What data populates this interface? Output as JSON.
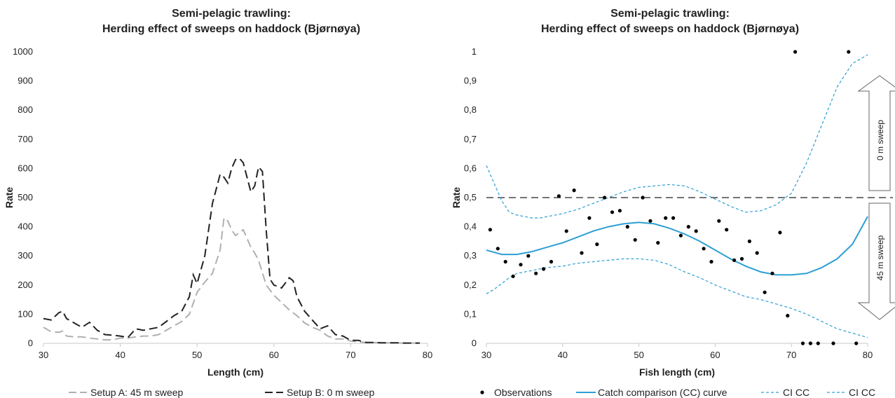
{
  "chart_data": [
    {
      "type": "line",
      "title_line1": "Semi-pelagic trawling:",
      "title_line2": "Herding effect of sweeps on haddock (Bjørnøya)",
      "xlabel": "Length (cm)",
      "ylabel": "Rate",
      "xlim": [
        30,
        80
      ],
      "ylim": [
        0,
        1000
      ],
      "x_ticks": [
        "30",
        "40",
        "50",
        "60",
        "70",
        "80"
      ],
      "y_ticks": [
        "0",
        "100",
        "200",
        "300",
        "400",
        "500",
        "600",
        "700",
        "800",
        "900",
        "1000"
      ],
      "grid": false,
      "legend_position": "bottom",
      "series": [
        {
          "name": "Setup A: 45 m sweep",
          "color": "#b0b0b0",
          "x": [
            30,
            31,
            32,
            32.5,
            33,
            34,
            35,
            36,
            37,
            38,
            39,
            40,
            41,
            42,
            43,
            44,
            45,
            46,
            47,
            48,
            49,
            50,
            51,
            52,
            53,
            53.5,
            54,
            54.5,
            55,
            56,
            57,
            57.5,
            58,
            59,
            60,
            61,
            62,
            63,
            64,
            65,
            66,
            67,
            68,
            69,
            70,
            71,
            72,
            73,
            74,
            75,
            76,
            77,
            78,
            79
          ],
          "values": [
            55,
            40,
            38,
            42,
            25,
            22,
            22,
            18,
            15,
            12,
            12,
            18,
            18,
            22,
            25,
            25,
            30,
            45,
            60,
            75,
            100,
            175,
            210,
            240,
            320,
            430,
            420,
            390,
            370,
            390,
            330,
            310,
            285,
            200,
            165,
            140,
            115,
            95,
            70,
            55,
            45,
            25,
            15,
            15,
            8,
            5,
            3,
            3,
            2,
            2,
            1,
            1,
            1,
            1
          ]
        },
        {
          "name": "Setup B: 0 m sweep",
          "color": "#222222",
          "x": [
            30,
            31,
            32,
            32.5,
            33,
            34,
            35,
            36,
            37,
            38,
            39,
            40,
            41,
            42,
            43,
            44,
            45,
            46,
            47,
            48,
            49,
            49.5,
            50,
            51,
            52,
            53,
            53.5,
            54,
            54.5,
            55,
            55.5,
            56,
            57,
            57.5,
            58,
            58.5,
            59,
            59.5,
            60,
            61,
            62,
            62.5,
            63,
            64,
            65,
            66,
            67,
            68,
            69,
            70,
            71,
            72,
            73,
            74,
            75,
            76,
            77,
            78,
            79
          ],
          "values": [
            85,
            80,
            105,
            110,
            85,
            70,
            55,
            72,
            45,
            30,
            28,
            25,
            20,
            50,
            45,
            50,
            55,
            75,
            95,
            110,
            160,
            235,
            205,
            300,
            480,
            580,
            570,
            550,
            600,
            630,
            635,
            620,
            520,
            540,
            605,
            590,
            390,
            220,
            200,
            190,
            225,
            215,
            160,
            110,
            80,
            50,
            60,
            30,
            25,
            10,
            10,
            3,
            3,
            2,
            2,
            2,
            1,
            1,
            1
          ]
        }
      ]
    },
    {
      "type": "scatter",
      "title_line1": "Semi-pelagic trawling:",
      "title_line2": "Herding effect of sweeps on haddock (Bjørnøya)",
      "xlabel": "Fish length (cm)",
      "ylabel": "Rate",
      "xlim": [
        30,
        80
      ],
      "ylim": [
        0,
        1
      ],
      "x_ticks": [
        "30",
        "40",
        "50",
        "60",
        "70",
        "80"
      ],
      "y_ticks": [
        "0",
        "0,1",
        "0,2",
        "0,3",
        "0,4",
        "0,5",
        "0,6",
        "0,7",
        "0,8",
        "0,9",
        "1"
      ],
      "grid": false,
      "legend_position": "bottom",
      "reference_line": 0.5,
      "arrow_up_label": "0 m sweep",
      "arrow_down_label": "45 m sweep",
      "observations_name": "Observations",
      "observations": [
        [
          30.5,
          0.39
        ],
        [
          31.5,
          0.325
        ],
        [
          32.5,
          0.28
        ],
        [
          33.5,
          0.23
        ],
        [
          34.5,
          0.27
        ],
        [
          35.5,
          0.3
        ],
        [
          36.5,
          0.24
        ],
        [
          37.5,
          0.255
        ],
        [
          38.5,
          0.28
        ],
        [
          39.5,
          0.505
        ],
        [
          40.5,
          0.385
        ],
        [
          41.5,
          0.525
        ],
        [
          42.5,
          0.31
        ],
        [
          43.5,
          0.43
        ],
        [
          44.5,
          0.34
        ],
        [
          45.5,
          0.5
        ],
        [
          46.5,
          0.45
        ],
        [
          47.5,
          0.455
        ],
        [
          48.5,
          0.4
        ],
        [
          49.5,
          0.355
        ],
        [
          50.5,
          0.5
        ],
        [
          51.5,
          0.42
        ],
        [
          52.5,
          0.345
        ],
        [
          53.5,
          0.43
        ],
        [
          54.5,
          0.43
        ],
        [
          55.5,
          0.37
        ],
        [
          56.5,
          0.4
        ],
        [
          57.5,
          0.385
        ],
        [
          58.5,
          0.325
        ],
        [
          59.5,
          0.28
        ],
        [
          60.5,
          0.42
        ],
        [
          61.5,
          0.39
        ],
        [
          62.5,
          0.285
        ],
        [
          63.5,
          0.29
        ],
        [
          64.5,
          0.35
        ],
        [
          65.5,
          0.31
        ],
        [
          66.5,
          0.175
        ],
        [
          67.5,
          0.24
        ],
        [
          68.5,
          0.38
        ],
        [
          69.5,
          0.095
        ],
        [
          70.5,
          1.0
        ],
        [
          71.5,
          0.0
        ],
        [
          72.5,
          0.0
        ],
        [
          73.5,
          0.0
        ],
        [
          75.5,
          0.0
        ],
        [
          77.5,
          1.0
        ],
        [
          78.5,
          0.0
        ]
      ],
      "series": [
        {
          "name": "Catch comparison (CC) curve",
          "color": "#2e9fd4",
          "x": [
            30,
            32,
            34,
            36,
            38,
            40,
            42,
            44,
            46,
            48,
            50,
            52,
            54,
            56,
            58,
            60,
            62,
            64,
            66,
            68,
            70,
            72,
            74,
            76,
            78,
            80
          ],
          "values": [
            0.32,
            0.305,
            0.305,
            0.315,
            0.33,
            0.345,
            0.365,
            0.385,
            0.4,
            0.41,
            0.415,
            0.41,
            0.395,
            0.375,
            0.35,
            0.32,
            0.29,
            0.265,
            0.245,
            0.235,
            0.235,
            0.24,
            0.26,
            0.29,
            0.34,
            0.435
          ]
        },
        {
          "name": "CI CC",
          "color": "#2e9fd4",
          "x": [
            30,
            31,
            32,
            33,
            34,
            35,
            36,
            37,
            38,
            40,
            42,
            44,
            46,
            48,
            50,
            52,
            54,
            56,
            58,
            60,
            62,
            64,
            66,
            68,
            70,
            72,
            74,
            76,
            78,
            80
          ],
          "values": [
            0.61,
            0.55,
            0.49,
            0.45,
            0.44,
            0.435,
            0.43,
            0.43,
            0.435,
            0.445,
            0.46,
            0.48,
            0.5,
            0.52,
            0.535,
            0.54,
            0.545,
            0.54,
            0.52,
            0.495,
            0.47,
            0.45,
            0.455,
            0.475,
            0.515,
            0.62,
            0.75,
            0.88,
            0.96,
            0.99
          ]
        },
        {
          "name": "CI CC",
          "color": "#2e9fd4",
          "x": [
            30,
            31,
            32,
            33,
            34,
            35,
            36,
            38,
            40,
            42,
            44,
            46,
            48,
            50,
            52,
            54,
            56,
            58,
            60,
            62,
            64,
            66,
            68,
            70,
            72,
            74,
            76,
            78,
            80
          ],
          "values": [
            0.17,
            0.185,
            0.205,
            0.225,
            0.24,
            0.245,
            0.25,
            0.26,
            0.265,
            0.275,
            0.28,
            0.285,
            0.29,
            0.29,
            0.285,
            0.27,
            0.245,
            0.225,
            0.2,
            0.18,
            0.16,
            0.15,
            0.135,
            0.12,
            0.1,
            0.075,
            0.05,
            0.035,
            0.02
          ]
        }
      ]
    }
  ]
}
